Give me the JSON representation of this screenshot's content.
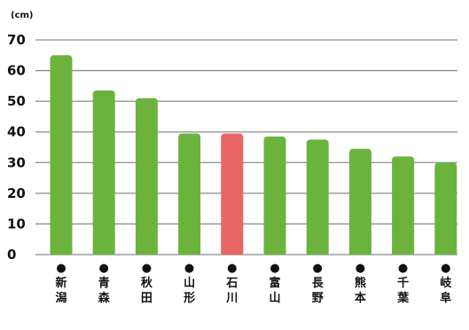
{
  "chart_data": {
    "type": "bar",
    "unit_label": "(cm)",
    "yticks": [
      0,
      10,
      20,
      30,
      40,
      50,
      60,
      70
    ],
    "ylim": [
      0,
      70
    ],
    "grid": true,
    "categories": [
      "●新潟",
      "●青森",
      "●秋田",
      "●山形",
      "●石川",
      "●富山",
      "●長野",
      "●熊本",
      "●千葉",
      "●岐阜"
    ],
    "values": [
      65,
      53.5,
      51,
      39.5,
      39.5,
      38.5,
      37.5,
      34.5,
      32,
      30
    ],
    "bar_colors": [
      "#6cb33e",
      "#6cb33e",
      "#6cb33e",
      "#6cb33e",
      "#ea6565",
      "#6cb33e",
      "#6cb33e",
      "#6cb33e",
      "#6cb33e",
      "#6cb33e"
    ]
  }
}
